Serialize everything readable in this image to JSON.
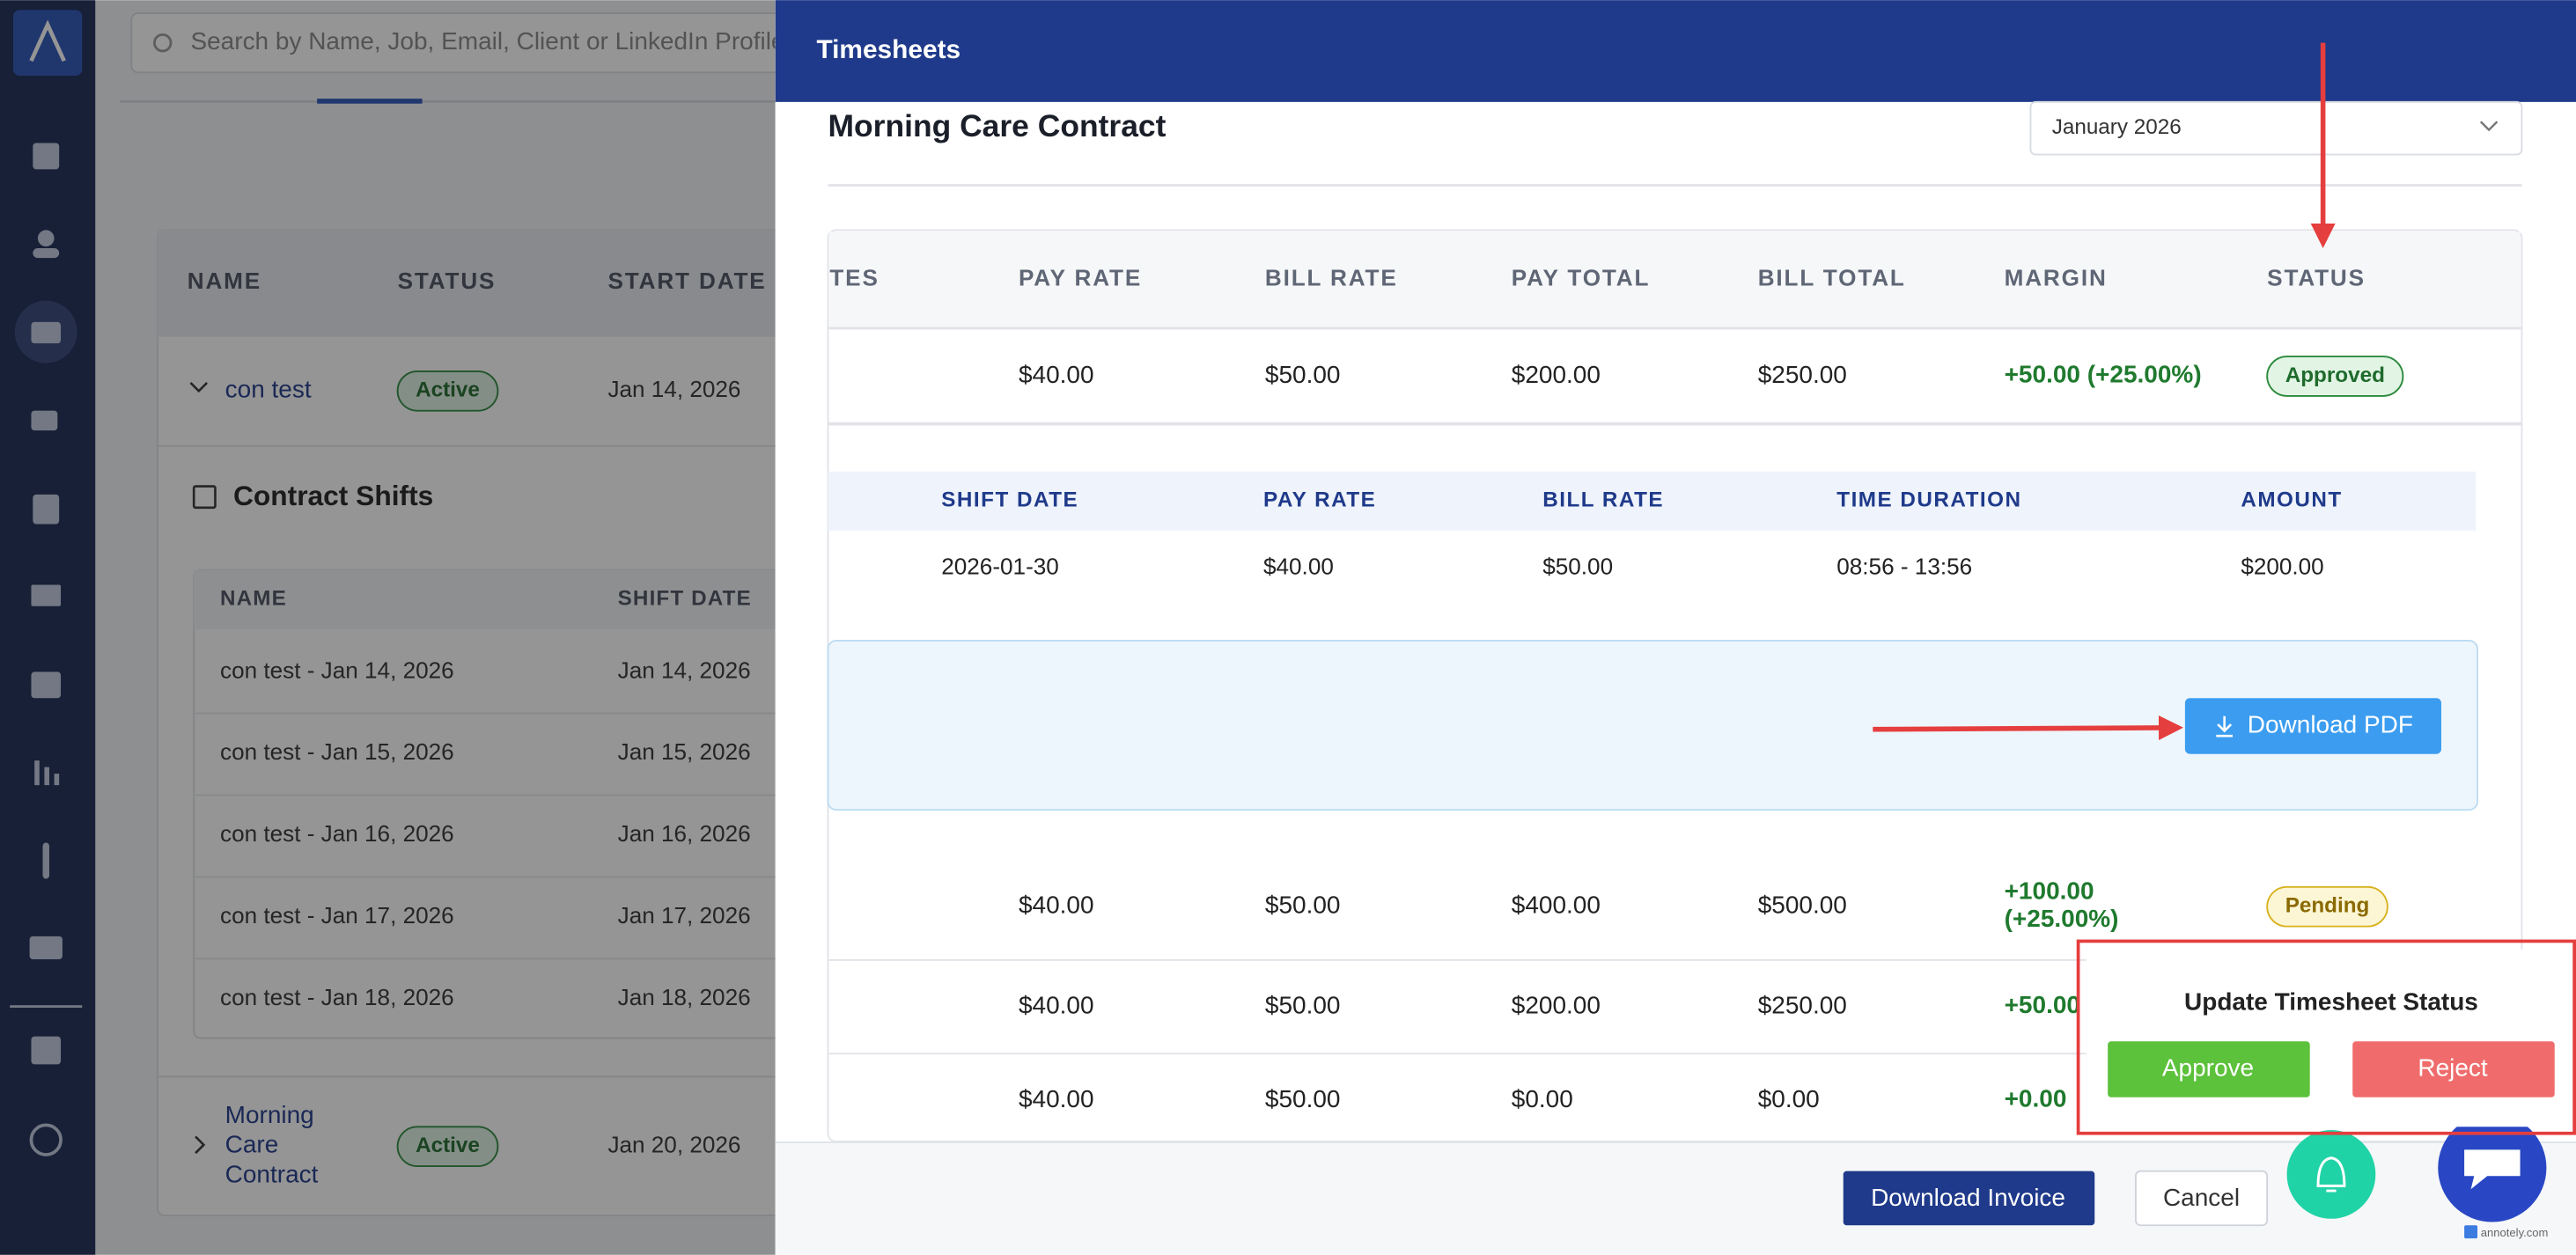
{
  "background": {
    "search_placeholder": "Search by Name, Job, Email, Client or LinkedIn Profile",
    "table": {
      "headers": [
        "NAME",
        "STATUS",
        "START DATE"
      ],
      "rows": [
        [
          [
            "con test"
          ],
          "Active",
          "Jan 14, 2026"
        ],
        [
          [
            "Morning",
            "Care",
            "Contract"
          ],
          "Active",
          "Jan 20, 2026"
        ]
      ]
    },
    "contract_shifts": {
      "title": "Contract Shifts",
      "headers": [
        "NAME",
        "SHIFT DATE"
      ],
      "rows": [
        [
          "con test - Jan 14, 2026",
          "Jan 14, 2026"
        ],
        [
          "con test - Jan 15, 2026",
          "Jan 15, 2026"
        ],
        [
          "con test - Jan 16, 2026",
          "Jan 16, 2026"
        ],
        [
          "con test - Jan 17, 2026",
          "Jan 17, 2026"
        ],
        [
          "con test - Jan 18, 2026",
          "Jan 18, 2026"
        ]
      ]
    }
  },
  "modal": {
    "title": "Timesheets",
    "contract": "Morning Care Contract",
    "month": "January 2026",
    "table": {
      "headers": [
        "TES",
        "PAY RATE",
        "BILL RATE",
        "PAY TOTAL",
        "BILL TOTAL",
        "MARGIN",
        "STATUS"
      ],
      "rows": [
        [
          "$40.00",
          "$50.00",
          "$200.00",
          "$250.00",
          [
            "+50.00 (+25.00%)"
          ],
          "Approved"
        ],
        [
          "$40.00",
          "$50.00",
          "$400.00",
          "$500.00",
          [
            "+100.00",
            "(+25.00%)"
          ],
          "Pending"
        ],
        [
          "$40.00",
          "$50.00",
          "$200.00",
          "$250.00",
          [
            "+50.00"
          ]
        ],
        [
          "$40.00",
          "$50.00",
          "$0.00",
          "$0.00",
          [
            "+0.00"
          ]
        ]
      ]
    },
    "shift_table": {
      "headers": [
        "SHIFT DATE",
        "PAY RATE",
        "BILL RATE",
        "TIME DURATION",
        "AMOUNT"
      ],
      "rows": [
        [
          "2026-01-30",
          "$40.00",
          "$50.00",
          "08:56 - 13:56",
          "$200.00"
        ]
      ]
    },
    "download_pdf": "Download PDF",
    "footer": {
      "download_invoice": "Download Invoice",
      "cancel": "Cancel"
    }
  },
  "popup": {
    "title": "Update Timesheet Status",
    "approve": "Approve",
    "reject": "Reject"
  },
  "watermark": "annotely.com"
}
